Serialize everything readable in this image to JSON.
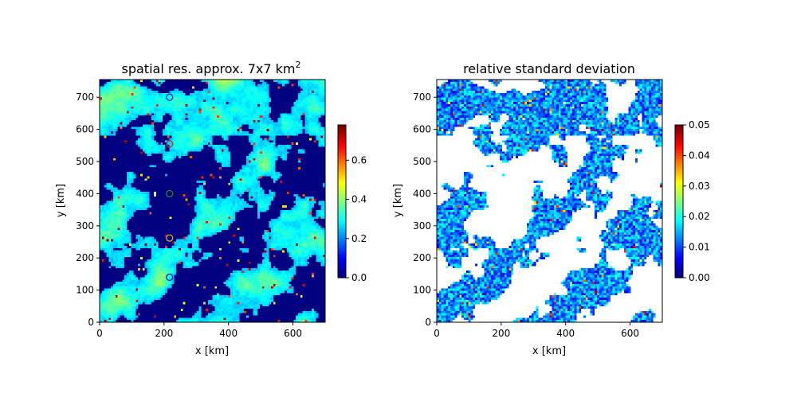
{
  "chart_data": [
    {
      "type": "heatmap",
      "title": "spatial res. approx. 7x7 km",
      "title_superscript": "2",
      "xlabel": "x [km]",
      "ylabel": "y [km]",
      "xlim": [
        0,
        700
      ],
      "ylim": [
        0,
        755
      ],
      "xticks": [
        "0",
        "200",
        "400",
        "600"
      ],
      "xtick_values": [
        0,
        200,
        400,
        600
      ],
      "yticks": [
        "0",
        "100",
        "200",
        "300",
        "400",
        "500",
        "600",
        "700"
      ],
      "ytick_values": [
        0,
        100,
        200,
        300,
        400,
        500,
        600,
        700
      ],
      "colormap": "jet",
      "colorbar": {
        "vmin": 0.0,
        "vmax": 0.78,
        "ticks": [
          "0.0",
          "0.2",
          "0.4",
          "0.6"
        ],
        "tick_values": [
          0.0,
          0.2,
          0.4,
          0.6
        ]
      },
      "markers": [
        {
          "x": 217,
          "y": 700,
          "color": "#1e1ec8"
        },
        {
          "x": 217,
          "y": 555,
          "color": "#c83232"
        },
        {
          "x": 217,
          "y": 400,
          "color": "#1e8c1e"
        },
        {
          "x": 217,
          "y": 262,
          "color": "#d2b41e"
        },
        {
          "x": 217,
          "y": 140,
          "color": "#1e1ec8"
        }
      ]
    },
    {
      "type": "heatmap",
      "title": "relative standard deviation",
      "xlabel": "x [km]",
      "ylabel": "y [km]",
      "xlim": [
        0,
        700
      ],
      "ylim": [
        0,
        755
      ],
      "xticks": [
        "0",
        "200",
        "400",
        "600"
      ],
      "xtick_values": [
        0,
        200,
        400,
        600
      ],
      "yticks": [
        "0",
        "100",
        "200",
        "300",
        "400",
        "500",
        "600",
        "700"
      ],
      "ytick_values": [
        0,
        100,
        200,
        300,
        400,
        500,
        600,
        700
      ],
      "colormap": "jet",
      "background": "white",
      "colorbar": {
        "vmin": 0.0,
        "vmax": 0.05,
        "ticks": [
          "0.00",
          "0.01",
          "0.02",
          "0.03",
          "0.04",
          "0.05"
        ],
        "tick_values": [
          0.0,
          0.01,
          0.02,
          0.03,
          0.04,
          0.05
        ]
      }
    }
  ]
}
